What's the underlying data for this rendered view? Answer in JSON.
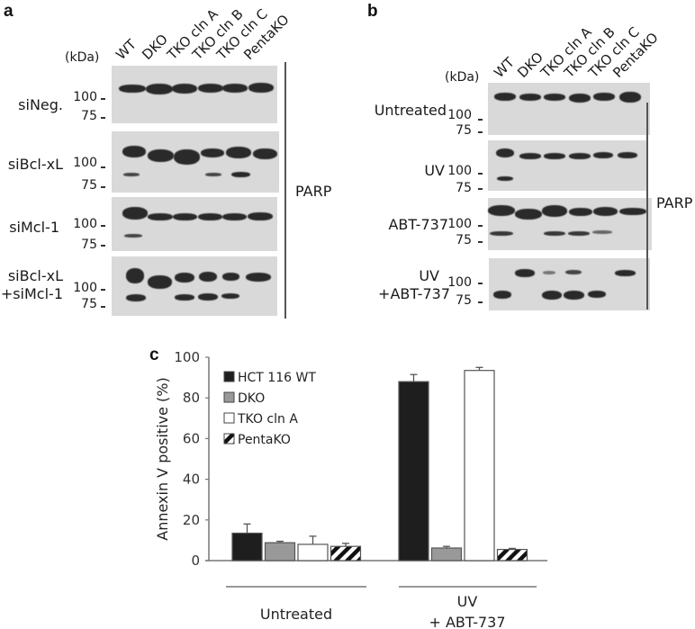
{
  "panel_a": {
    "letter": "a",
    "kda_label": "(kDa)",
    "lanes": [
      "WT",
      "DKO",
      "TKO cln A",
      "TKO cln B",
      "TKO cln C",
      "PentaKO"
    ],
    "rows": [
      {
        "label": "siNeg.",
        "mw_top": "100",
        "mw_bottom": "75"
      },
      {
        "label": "siBcl-xL",
        "mw_top": "100",
        "mw_bottom": "75"
      },
      {
        "label": "siMcl-1",
        "mw_top": "100",
        "mw_bottom": "75"
      },
      {
        "label": "siBcl-xL",
        "label2": "+siMcl-1",
        "mw_top": "100",
        "mw_bottom": "75"
      }
    ],
    "protein": "PARP"
  },
  "panel_b": {
    "letter": "b",
    "kda_label": "(kDa)",
    "lanes": [
      "WT",
      "DKO",
      "TKO cln A",
      "TKO cln B",
      "TKO cln C",
      "PentaKO"
    ],
    "rows": [
      {
        "label": "Untreated",
        "mw_top": "100",
        "mw_bottom": "75"
      },
      {
        "label": "UV",
        "mw_top": "100",
        "mw_bottom": "75"
      },
      {
        "label": "ABT-737",
        "mw_top": "100",
        "mw_bottom": "75"
      },
      {
        "label": "UV",
        "label2": "+ABT-737",
        "mw_top": "100",
        "mw_bottom": "75"
      }
    ],
    "protein": "PARP"
  },
  "panel_c": {
    "letter": "c"
  },
  "chart_data": {
    "type": "bar",
    "title": "",
    "xlabel": "",
    "ylabel": "Annexin V  positive (%)",
    "ylim": [
      0,
      100
    ],
    "yticks": [
      "0",
      "20",
      "40",
      "60",
      "80",
      "100"
    ],
    "grid": false,
    "legend_position": "upper-left-inside",
    "categories": [
      "Untreated",
      "UV + ABT-737"
    ],
    "category_labels": {
      "untreated": "Untreated",
      "uv_line1": "UV",
      "uv_line2": "+ ABT-737"
    },
    "series": [
      {
        "name": "HCT 116 WT",
        "values": [
          13.5,
          88
        ],
        "errors": [
          4.5,
          3.5
        ],
        "fill": "#1e1e1e",
        "pattern": "solid"
      },
      {
        "name": "DKO",
        "values": [
          8.8,
          6.2
        ],
        "errors": [
          0.7,
          0.8
        ],
        "fill": "#999999",
        "pattern": "solid"
      },
      {
        "name": "TKO cln A",
        "values": [
          8,
          93.5
        ],
        "errors": [
          4,
          1.5
        ],
        "fill": "#ffffff",
        "pattern": "solid"
      },
      {
        "name": "PentaKO",
        "values": [
          7,
          5.5
        ],
        "errors": [
          1.5,
          0.5
        ],
        "fill": "#ffffff",
        "pattern": "diagonal-hatch"
      }
    ]
  }
}
